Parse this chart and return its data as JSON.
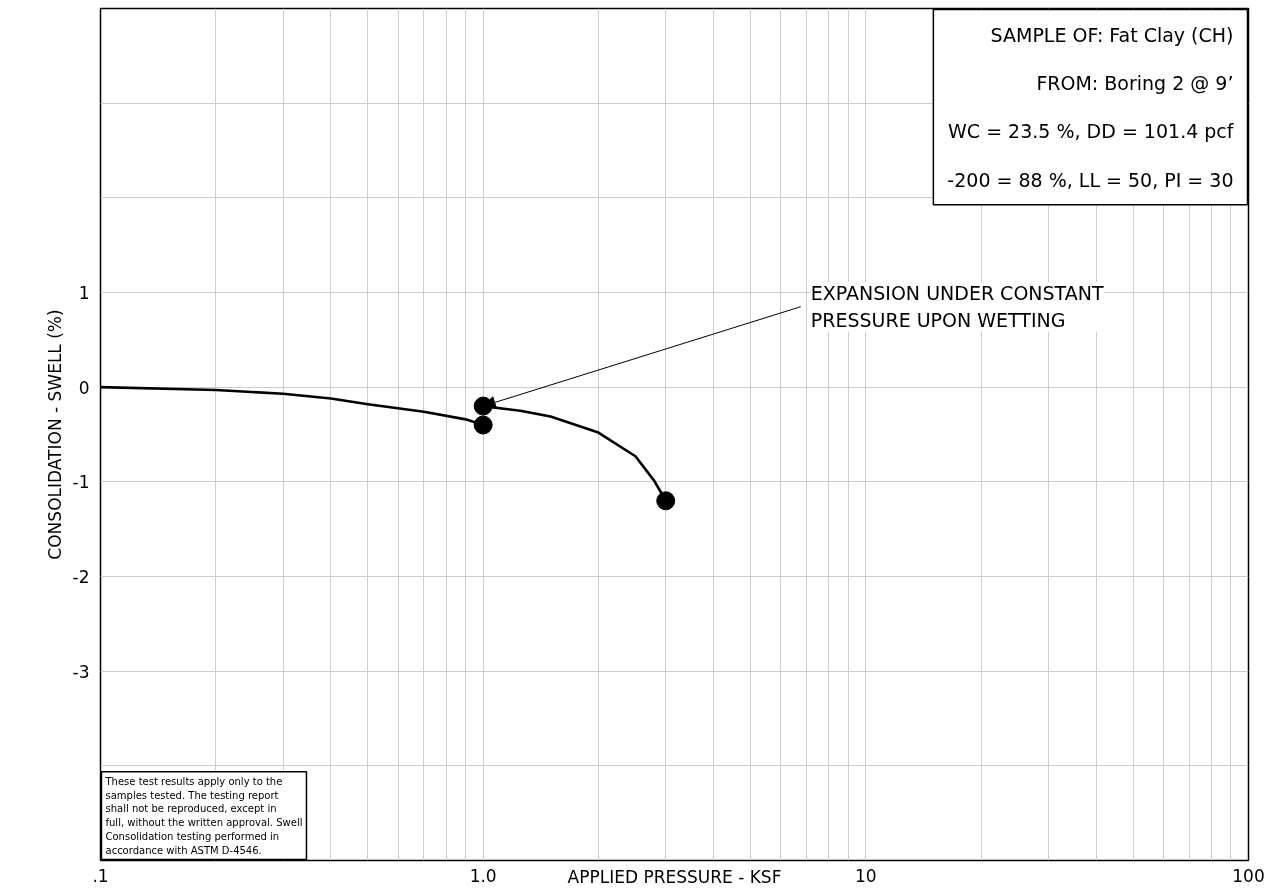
{
  "chart_data": {
    "type": "line",
    "xlabel": "APPLIED PRESSURE - KSF",
    "ylabel": "CONSOLIDATION - SWELL (%)",
    "log": "x",
    "grid": true,
    "xlim": [
      0.1,
      100
    ],
    "ylim": [
      -5,
      4
    ],
    "xticks": [
      {
        "value": 0.1,
        "label": ".1"
      },
      {
        "value": 0.2,
        "label": null
      },
      {
        "value": 0.3,
        "label": null
      },
      {
        "value": 0.4,
        "label": null
      },
      {
        "value": 0.5,
        "label": null
      },
      {
        "value": 0.6,
        "label": null
      },
      {
        "value": 0.7,
        "label": null
      },
      {
        "value": 0.8,
        "label": null
      },
      {
        "value": 0.9,
        "label": null
      },
      {
        "value": 1,
        "label": "1.0"
      },
      {
        "value": 2,
        "label": null
      },
      {
        "value": 3,
        "label": null
      },
      {
        "value": 4,
        "label": null
      },
      {
        "value": 5,
        "label": null
      },
      {
        "value": 6,
        "label": null
      },
      {
        "value": 7,
        "label": null
      },
      {
        "value": 8,
        "label": null
      },
      {
        "value": 9,
        "label": null
      },
      10,
      {
        "value": 20,
        "label": null
      },
      {
        "value": 30,
        "label": null
      },
      {
        "value": 40,
        "label": null
      },
      {
        "value": 50,
        "label": null
      },
      {
        "value": 60,
        "label": null
      },
      {
        "value": 70,
        "label": null
      },
      {
        "value": 80,
        "label": null
      },
      {
        "value": 90,
        "label": null
      },
      100
    ],
    "yticks": [
      {
        "value": -5,
        "label": null
      },
      {
        "value": -4,
        "label": null
      },
      -3,
      -2,
      -1,
      0,
      1,
      {
        "value": 2,
        "label": null
      },
      {
        "value": 3,
        "label": null
      },
      {
        "value": 4,
        "label": null
      }
    ],
    "series": [
      {
        "color": "#000000",
        "marker": "none",
        "x": [
          0.1,
          0.2,
          0.3,
          0.4,
          0.5,
          0.7,
          0.9,
          1.0
        ],
        "values": [
          0,
          -0.03,
          -0.07,
          -0.12,
          -0.18,
          -0.26,
          -0.34,
          -0.4
        ]
      },
      {
        "color": "#000000",
        "marker": "none",
        "x": [
          1.0,
          1.25,
          1.5,
          2,
          2.5,
          2.8,
          3.0
        ],
        "values": [
          -0.2,
          -0.25,
          -0.31,
          -0.48,
          -0.73,
          -0.99,
          -1.2
        ]
      },
      {
        "type": "scatter",
        "color": "#000000",
        "marker": "circle",
        "x": [
          1.0,
          1.0,
          3.0
        ],
        "values": [
          -0.4,
          -0.2,
          -1.2
        ]
      }
    ],
    "annotations": [
      "SAMPLE OF: Fat Clay (CH)\nFROM: Boring 2 @ 9’\nWC = 23.5 %, DD = 101.4 pcf\n-200 = 88 %, LL = 50, PI = 30",
      {
        "text": "EXPANSION UNDER CONSTANT\nPRESSURE UPON WETTING",
        "x": 1.0,
        "y": -0.2
      },
      "These test results apply only to the\nsamples tested. The testing report\nshall not be reproduced, except in\nfull, without the written approval. Swell\nConsolidation testing performed in\naccordance with ASTM D-4546."
    ]
  }
}
